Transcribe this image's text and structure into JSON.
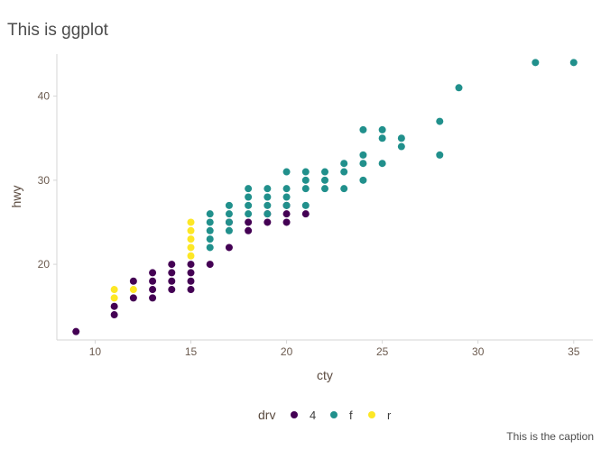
{
  "chart_data": {
    "type": "scatter",
    "title": "This is ggplot",
    "caption": "This is the caption",
    "xlabel": "cty",
    "ylabel": "hwy",
    "xlim": [
      8,
      36
    ],
    "ylim": [
      11,
      45
    ],
    "xticks": [
      10,
      15,
      20,
      25,
      30,
      35
    ],
    "yticks": [
      20,
      30,
      40
    ],
    "grid": false,
    "legend": {
      "title": "drv",
      "placement": "bottom",
      "entries": [
        "4",
        "f",
        "r"
      ]
    },
    "colors": {
      "4": "#440154",
      "f": "#21908c",
      "r": "#fde725"
    },
    "series": [
      {
        "name": "4",
        "points": [
          [
            9,
            12
          ],
          [
            11,
            14
          ],
          [
            11,
            15
          ],
          [
            12,
            16
          ],
          [
            12,
            18
          ],
          [
            13,
            16
          ],
          [
            13,
            17
          ],
          [
            13,
            18
          ],
          [
            13,
            19
          ],
          [
            14,
            17
          ],
          [
            14,
            18
          ],
          [
            14,
            19
          ],
          [
            14,
            20
          ],
          [
            15,
            17
          ],
          [
            15,
            18
          ],
          [
            15,
            19
          ],
          [
            15,
            20
          ],
          [
            16,
            20
          ],
          [
            17,
            22
          ],
          [
            17,
            25
          ],
          [
            18,
            24
          ],
          [
            18,
            25
          ],
          [
            19,
            25
          ],
          [
            19,
            26
          ],
          [
            20,
            25
          ],
          [
            20,
            26
          ],
          [
            20,
            27
          ],
          [
            21,
            26
          ]
        ]
      },
      {
        "name": "f",
        "points": [
          [
            16,
            22
          ],
          [
            16,
            23
          ],
          [
            16,
            24
          ],
          [
            16,
            25
          ],
          [
            16,
            26
          ],
          [
            17,
            24
          ],
          [
            17,
            25
          ],
          [
            17,
            26
          ],
          [
            17,
            27
          ],
          [
            18,
            26
          ],
          [
            18,
            27
          ],
          [
            18,
            28
          ],
          [
            18,
            29
          ],
          [
            19,
            26
          ],
          [
            19,
            27
          ],
          [
            19,
            28
          ],
          [
            19,
            29
          ],
          [
            20,
            27
          ],
          [
            20,
            28
          ],
          [
            20,
            29
          ],
          [
            20,
            31
          ],
          [
            21,
            27
          ],
          [
            21,
            29
          ],
          [
            21,
            30
          ],
          [
            21,
            31
          ],
          [
            22,
            29
          ],
          [
            22,
            30
          ],
          [
            22,
            31
          ],
          [
            23,
            29
          ],
          [
            23,
            31
          ],
          [
            23,
            32
          ],
          [
            24,
            30
          ],
          [
            24,
            32
          ],
          [
            24,
            33
          ],
          [
            24,
            36
          ],
          [
            25,
            32
          ],
          [
            25,
            35
          ],
          [
            25,
            36
          ],
          [
            26,
            34
          ],
          [
            26,
            35
          ],
          [
            28,
            33
          ],
          [
            28,
            37
          ],
          [
            29,
            41
          ],
          [
            33,
            44
          ],
          [
            35,
            44
          ]
        ]
      },
      {
        "name": "r",
        "points": [
          [
            11,
            16
          ],
          [
            11,
            17
          ],
          [
            12,
            17
          ],
          [
            15,
            21
          ],
          [
            15,
            22
          ],
          [
            15,
            23
          ],
          [
            15,
            24
          ],
          [
            15,
            25
          ]
        ]
      }
    ]
  }
}
